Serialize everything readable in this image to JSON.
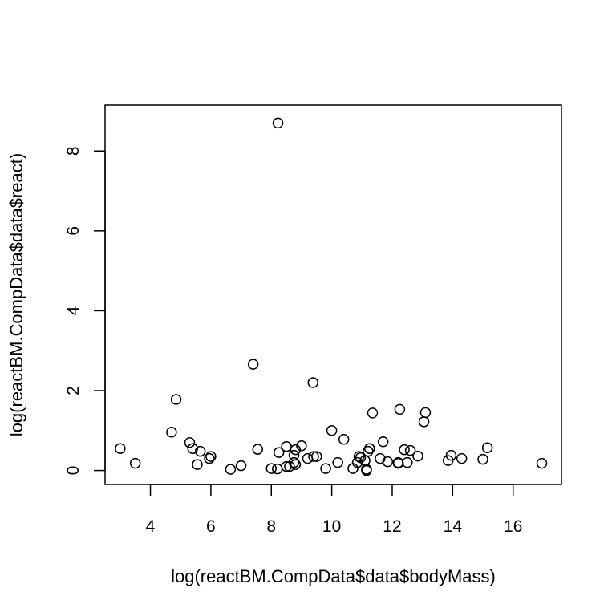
{
  "chart_data": {
    "type": "scatter",
    "title": "",
    "xlabel": "log(reactBM.CompData$data$bodyMass)",
    "ylabel": "log(reactBM.CompData$data$react)",
    "xlim": [
      2.5,
      17.6
    ],
    "ylim": [
      -0.35,
      9.15
    ],
    "x_ticks": [
      4,
      6,
      8,
      10,
      12,
      14,
      16
    ],
    "y_ticks": [
      0,
      2,
      4,
      6,
      8
    ],
    "grid": false,
    "marker": "open-circle",
    "points": [
      {
        "x": 3.0,
        "y": 0.55
      },
      {
        "x": 3.5,
        "y": 0.18
      },
      {
        "x": 4.7,
        "y": 0.96
      },
      {
        "x": 4.85,
        "y": 1.78
      },
      {
        "x": 5.3,
        "y": 0.7
      },
      {
        "x": 5.4,
        "y": 0.55
      },
      {
        "x": 5.55,
        "y": 0.15
      },
      {
        "x": 5.65,
        "y": 0.48
      },
      {
        "x": 5.95,
        "y": 0.3
      },
      {
        "x": 6.0,
        "y": 0.35
      },
      {
        "x": 6.65,
        "y": 0.03
      },
      {
        "x": 7.0,
        "y": 0.12
      },
      {
        "x": 7.4,
        "y": 2.66
      },
      {
        "x": 7.55,
        "y": 0.53
      },
      {
        "x": 8.0,
        "y": 0.05
      },
      {
        "x": 8.2,
        "y": 0.04
      },
      {
        "x": 8.25,
        "y": 0.45
      },
      {
        "x": 8.22,
        "y": 8.7
      },
      {
        "x": 8.5,
        "y": 0.6
      },
      {
        "x": 8.5,
        "y": 0.1
      },
      {
        "x": 8.6,
        "y": 0.1
      },
      {
        "x": 8.75,
        "y": 0.2
      },
      {
        "x": 8.75,
        "y": 0.38
      },
      {
        "x": 8.8,
        "y": 0.52
      },
      {
        "x": 8.8,
        "y": 0.15
      },
      {
        "x": 9.0,
        "y": 0.62
      },
      {
        "x": 9.2,
        "y": 0.3
      },
      {
        "x": 9.38,
        "y": 2.2
      },
      {
        "x": 9.4,
        "y": 0.35
      },
      {
        "x": 9.5,
        "y": 0.35
      },
      {
        "x": 9.8,
        "y": 0.05
      },
      {
        "x": 10.0,
        "y": 1.0
      },
      {
        "x": 10.2,
        "y": 0.2
      },
      {
        "x": 10.4,
        "y": 0.78
      },
      {
        "x": 10.7,
        "y": 0.05
      },
      {
        "x": 10.85,
        "y": 0.2
      },
      {
        "x": 10.9,
        "y": 0.35
      },
      {
        "x": 10.95,
        "y": 0.32
      },
      {
        "x": 11.1,
        "y": 0.25
      },
      {
        "x": 11.15,
        "y": 0.03
      },
      {
        "x": 11.15,
        "y": 0.0
      },
      {
        "x": 11.2,
        "y": 0.48
      },
      {
        "x": 11.25,
        "y": 0.55
      },
      {
        "x": 11.35,
        "y": 1.44
      },
      {
        "x": 11.6,
        "y": 0.3
      },
      {
        "x": 11.7,
        "y": 0.72
      },
      {
        "x": 11.85,
        "y": 0.22
      },
      {
        "x": 12.2,
        "y": 0.18
      },
      {
        "x": 12.2,
        "y": 0.2
      },
      {
        "x": 12.25,
        "y": 1.53
      },
      {
        "x": 12.4,
        "y": 0.52
      },
      {
        "x": 12.5,
        "y": 0.2
      },
      {
        "x": 12.6,
        "y": 0.5
      },
      {
        "x": 12.85,
        "y": 0.36
      },
      {
        "x": 13.05,
        "y": 1.22
      },
      {
        "x": 13.1,
        "y": 1.45
      },
      {
        "x": 13.85,
        "y": 0.25
      },
      {
        "x": 13.95,
        "y": 0.38
      },
      {
        "x": 14.3,
        "y": 0.3
      },
      {
        "x": 15.0,
        "y": 0.28
      },
      {
        "x": 15.15,
        "y": 0.57
      },
      {
        "x": 16.95,
        "y": 0.18
      }
    ]
  }
}
